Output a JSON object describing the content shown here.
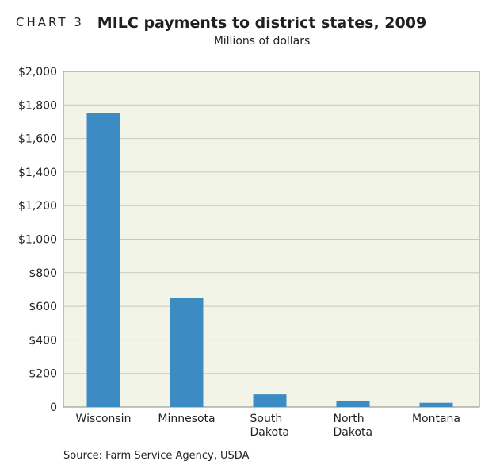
{
  "header": {
    "chart_label": "CHART 3",
    "source": "Source: Farm Service Agency, USDA"
  },
  "colors": {
    "plot_bg": "#f3f4e8",
    "bar": "#3c8bc3",
    "grid": "#c8c8c0"
  },
  "chart_data": {
    "type": "bar",
    "title": "MILC payments to district states, 2009",
    "subtitle": "Millions of dollars",
    "categories": [
      [
        "Wisconsin"
      ],
      [
        "Minnesota"
      ],
      [
        "South",
        "Dakota"
      ],
      [
        "North",
        "Dakota"
      ],
      [
        "Montana"
      ]
    ],
    "values": [
      1750,
      650,
      75,
      38,
      25
    ],
    "ylim": [
      0,
      2000
    ],
    "yticks": [
      0,
      200,
      400,
      600,
      800,
      1000,
      1200,
      1400,
      1600,
      1800,
      2000
    ],
    "ytick_labels": [
      "0",
      "$200",
      "$400",
      "$600",
      "$800",
      "$1,000",
      "$1,200",
      "$1,400",
      "$1,600",
      "$1,800",
      "$2,000"
    ],
    "grid": true
  }
}
